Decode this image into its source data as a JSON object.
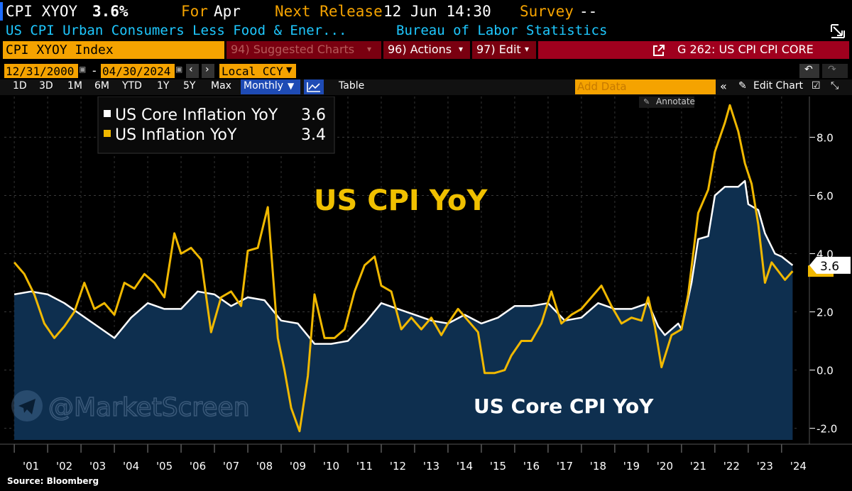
{
  "header": {
    "ticker": "CPI XYOY",
    "value": "3.6%",
    "for_label": "For",
    "for_value": "Apr",
    "next_release_label": "Next Release",
    "next_release_value": "12 Jun 14:30",
    "survey_label": "Survey",
    "survey_value": "--",
    "description": "US CPI Urban Consumers Less Food & Ener...",
    "source": "Bureau of Labor Statistics"
  },
  "command_bar": {
    "security": "CPI XYOY Index",
    "suggested": "94) Suggested Charts",
    "actions": "96) Actions",
    "edit": "97) Edit",
    "chart_title": "G 262: US CPI CPI CORE"
  },
  "range_bar": {
    "start_date": "12/31/2000",
    "dash": "-",
    "end_date": "04/30/2024",
    "currency": "Local CCY"
  },
  "period_bar": {
    "periods": [
      "1D",
      "3D",
      "1M",
      "6M",
      "YTD",
      "1Y",
      "5Y",
      "Max"
    ],
    "frequency": "Monthly",
    "table": "Table",
    "add_data_placeholder": "Add Data",
    "edit_chart": "Edit Chart"
  },
  "legend": {
    "annotate": "Annotate",
    "items": [
      {
        "name": "US Core Inflation YoY",
        "value": "3.6",
        "color": "#ffffff"
      },
      {
        "name": "US Inflation YoY",
        "value": "3.4",
        "color": "#f0b800"
      }
    ]
  },
  "watermark": "@MarketScreen",
  "source_note": "Source: Bloomberg",
  "chart_data": {
    "type": "line",
    "title": "US CPI YoY",
    "subtitle": "US Core CPI YoY",
    "ylim": [
      -2.4,
      9.4
    ],
    "y_ticks": [
      -2,
      0,
      2,
      4,
      6,
      8
    ],
    "y_tick_labels": [
      "-2.0",
      "0.0",
      "2.0",
      "4.0",
      "6.0",
      "8.0"
    ],
    "x_tick_labels": [
      "'01",
      "'02",
      "'03",
      "'04",
      "'05",
      "'06",
      "'07",
      "'08",
      "'09",
      "'10",
      "'11",
      "'12",
      "'13",
      "'14",
      "'15",
      "'16",
      "'17",
      "'18",
      "'19",
      "'20",
      "'21",
      "'22",
      "'23",
      "'24"
    ],
    "last_value_label": "3.6",
    "series": [
      {
        "name": "US Core Inflation YoY",
        "color": "#ffffff",
        "area": true,
        "x": [
          2001.0,
          2001.5,
          2002.0,
          2002.5,
          2003.0,
          2003.5,
          2004.0,
          2004.5,
          2005.0,
          2005.5,
          2006.0,
          2006.5,
          2007.0,
          2007.5,
          2008.0,
          2008.5,
          2009.0,
          2009.5,
          2010.0,
          2010.5,
          2011.0,
          2011.5,
          2012.0,
          2012.5,
          2013.0,
          2013.5,
          2014.0,
          2014.5,
          2015.0,
          2015.5,
          2016.0,
          2016.5,
          2017.0,
          2017.5,
          2018.0,
          2018.5,
          2019.0,
          2019.5,
          2020.0,
          2020.3,
          2020.5,
          2020.9,
          2021.0,
          2021.3,
          2021.5,
          2021.8,
          2022.0,
          2022.3,
          2022.7,
          2022.9,
          2023.0,
          2023.3,
          2023.5,
          2023.8,
          2024.0,
          2024.33
        ],
        "values": [
          2.6,
          2.7,
          2.6,
          2.3,
          1.9,
          1.5,
          1.1,
          1.8,
          2.3,
          2.1,
          2.1,
          2.7,
          2.6,
          2.2,
          2.5,
          2.4,
          1.7,
          1.6,
          0.9,
          0.9,
          1.0,
          1.6,
          2.3,
          2.1,
          1.9,
          1.7,
          1.6,
          1.9,
          1.6,
          1.8,
          2.2,
          2.2,
          2.3,
          1.7,
          1.8,
          2.3,
          2.1,
          2.1,
          2.3,
          1.5,
          1.2,
          1.6,
          1.4,
          3.0,
          4.5,
          4.6,
          6.0,
          6.3,
          6.3,
          6.5,
          5.7,
          5.5,
          4.7,
          4.0,
          3.9,
          3.6
        ]
      },
      {
        "name": "US Inflation YoY",
        "color": "#f0b800",
        "area": false,
        "x": [
          2001.0,
          2001.3,
          2001.6,
          2001.9,
          2002.2,
          2002.5,
          2002.8,
          2003.1,
          2003.4,
          2003.7,
          2004.0,
          2004.3,
          2004.6,
          2004.9,
          2005.2,
          2005.5,
          2005.8,
          2006.0,
          2006.3,
          2006.6,
          2006.9,
          2007.2,
          2007.5,
          2007.8,
          2008.0,
          2008.3,
          2008.6,
          2008.9,
          2009.1,
          2009.3,
          2009.55,
          2009.8,
          2010.0,
          2010.3,
          2010.6,
          2010.9,
          2011.2,
          2011.5,
          2011.8,
          2012.0,
          2012.3,
          2012.6,
          2012.9,
          2013.2,
          2013.5,
          2013.8,
          2014.0,
          2014.3,
          2014.6,
          2014.9,
          2015.1,
          2015.4,
          2015.7,
          2015.9,
          2016.2,
          2016.5,
          2016.8,
          2017.1,
          2017.4,
          2017.7,
          2018.0,
          2018.3,
          2018.6,
          2018.9,
          2019.2,
          2019.5,
          2019.8,
          2020.0,
          2020.2,
          2020.4,
          2020.7,
          2021.0,
          2021.2,
          2021.5,
          2021.8,
          2022.0,
          2022.3,
          2022.45,
          2022.7,
          2022.9,
          2023.1,
          2023.3,
          2023.5,
          2023.7,
          2023.9,
          2024.1,
          2024.33
        ],
        "values": [
          3.7,
          3.3,
          2.6,
          1.6,
          1.1,
          1.5,
          2.0,
          3.0,
          2.1,
          2.3,
          1.9,
          3.0,
          2.8,
          3.3,
          3.0,
          2.5,
          4.7,
          4.0,
          4.2,
          3.8,
          1.3,
          2.5,
          2.7,
          2.2,
          4.1,
          4.2,
          5.6,
          1.1,
          0.0,
          -1.3,
          -2.1,
          -0.2,
          2.6,
          1.1,
          1.1,
          1.4,
          2.7,
          3.6,
          3.9,
          2.9,
          2.7,
          1.4,
          1.8,
          1.4,
          1.8,
          1.2,
          1.6,
          2.1,
          1.7,
          1.3,
          -0.1,
          -0.1,
          0.0,
          0.5,
          1.0,
          1.0,
          1.6,
          2.7,
          1.6,
          1.9,
          2.1,
          2.5,
          2.9,
          2.2,
          1.6,
          1.8,
          1.7,
          2.5,
          1.5,
          0.1,
          1.2,
          1.4,
          2.6,
          5.4,
          6.2,
          7.5,
          8.5,
          9.1,
          8.2,
          7.1,
          6.4,
          5.0,
          3.0,
          3.7,
          3.4,
          3.1,
          3.4
        ]
      }
    ]
  }
}
